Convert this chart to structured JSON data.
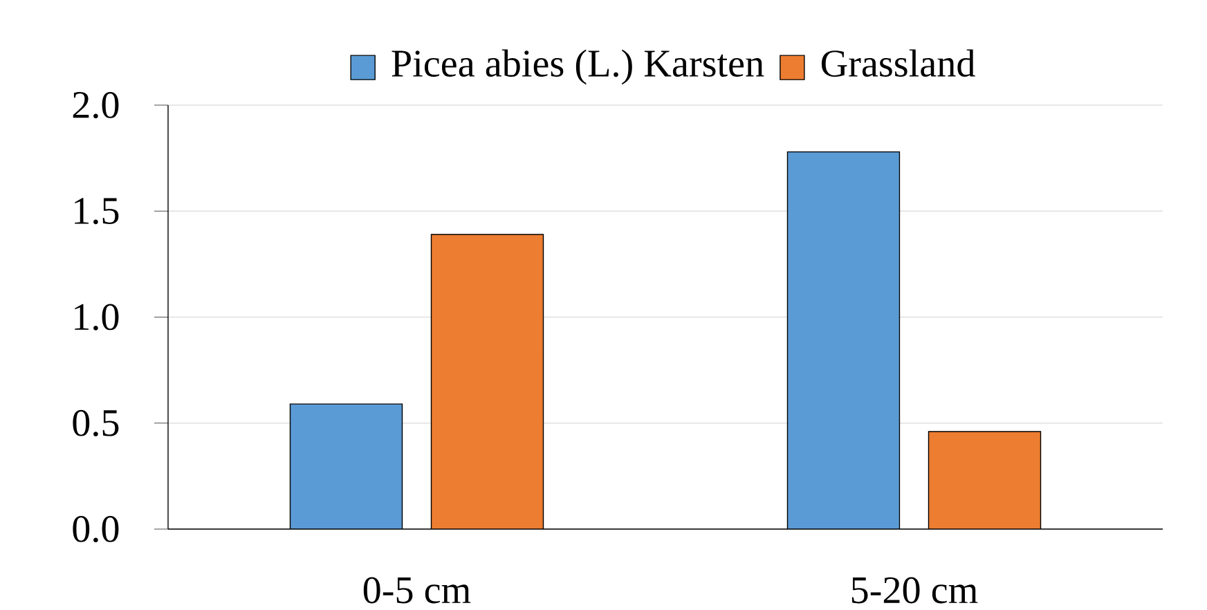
{
  "chart_data": {
    "type": "bar",
    "categories": [
      "0-5 cm",
      "5-20 cm"
    ],
    "series": [
      {
        "name": "Picea abies (L.) Karsten",
        "color": "#5b9bd5",
        "values": [
          0.59,
          1.78
        ]
      },
      {
        "name": "Grassland",
        "color": "#ed7d31",
        "values": [
          1.39,
          0.46
        ]
      }
    ],
    "ylim": [
      0,
      2
    ],
    "yticks": [
      {
        "value": 0,
        "label": "0.0"
      },
      {
        "value": 0.5,
        "label": "0.5"
      },
      {
        "value": 1,
        "label": "1.0"
      },
      {
        "value": 1.5,
        "label": "1.5"
      },
      {
        "value": 2,
        "label": "2.0"
      }
    ],
    "grid": "y",
    "legend": "top"
  }
}
